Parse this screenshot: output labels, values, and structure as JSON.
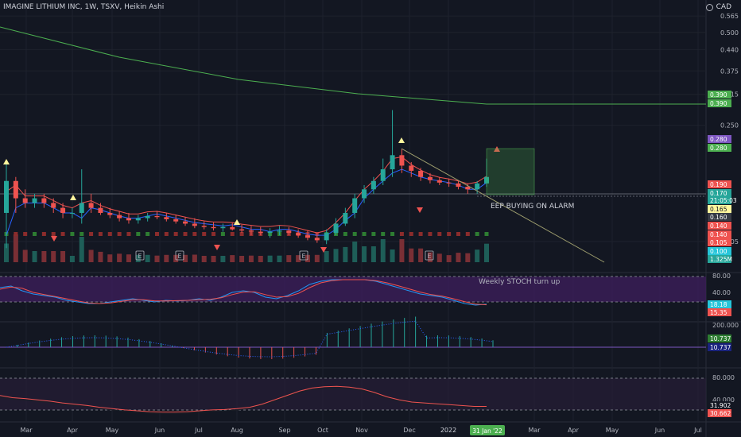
{
  "header": {
    "title": "IMAGINE LITHIUM INC, 1W, TSXV, Heikin Ashi",
    "currency": "CAD"
  },
  "annotations": {
    "alarm_text": "EEP BUYING ON ALARM",
    "stoch_text": "Weekly STOCH turn up"
  },
  "colors": {
    "bg": "#131722",
    "up": "#26a69a",
    "down": "#ef5350",
    "grid": "#1e222d",
    "axis_text": "#b2b5be",
    "ma_green": "#4caf50",
    "stoch_fill": "#3c1e5a"
  },
  "price_axis": {
    "ticks": [
      "0.565",
      "0.500",
      "0.440",
      "0.375",
      "0.315",
      "0.250",
      "0.105"
    ]
  },
  "price_labels": [
    {
      "text": "0.390",
      "bg": "#4caf50"
    },
    {
      "text": "0.390",
      "bg": "#4caf50"
    },
    {
      "text": "0.280",
      "bg": "#7e57c2"
    },
    {
      "text": "0.280",
      "bg": "#4caf50"
    },
    {
      "text": "0.190",
      "bg": "#ef5350"
    },
    {
      "text": "0.170",
      "bg": "#26a69a"
    },
    {
      "text": "21:05:03",
      "bg": "#26a69a"
    },
    {
      "text": "0.165",
      "bg": "#fff59d"
    },
    {
      "text": "0.160",
      "bg": "#363a45"
    },
    {
      "text": "0.140",
      "bg": "#ef5350"
    },
    {
      "text": "0.140",
      "bg": "#ef5350"
    },
    {
      "text": "0.105",
      "bg": "#ef5350"
    },
    {
      "text": "0.100",
      "bg": "#26c6da"
    },
    {
      "text": "1.325M",
      "bg": "#26a69a"
    }
  ],
  "stoch_axis": {
    "ticks": [
      "80.00",
      "40.00"
    ],
    "labels": [
      {
        "text": "18.18",
        "bg": "#26c6da"
      },
      {
        "text": "15.35",
        "bg": "#ef5350"
      }
    ]
  },
  "macd_axis": {
    "ticks": [
      "200.000"
    ],
    "labels": [
      {
        "text": "10.737",
        "bg": "#2e7d32"
      },
      {
        "text": "10.737",
        "bg": "#1a237e"
      }
    ]
  },
  "rsi_axis": {
    "ticks": [
      "80.000",
      "40.000"
    ],
    "labels": [
      {
        "text": "31.902",
        "bg": "#131722"
      },
      {
        "text": "30.662",
        "bg": "#ef5350"
      }
    ]
  },
  "time_axis": {
    "labels": [
      "Mar",
      "Apr",
      "May",
      "Jun",
      "Jul",
      "Aug",
      "Sep",
      "Oct",
      "Nov",
      "Dec",
      "2022",
      "Mar",
      "Apr",
      "May",
      "Jun",
      "Jul"
    ],
    "current": "31 Jan '22"
  },
  "earnings_marker": "E",
  "chart_data": {
    "type": "candlestick",
    "title": "IMAGINE LITHIUM INC, 1W, TSXV, Heikin Ashi",
    "ylim": [
      0.09,
      0.6
    ],
    "series": [
      {
        "candles": [
          {
            "o": 0.13,
            "h": 0.19,
            "l": 0.1,
            "c": 0.165
          },
          {
            "o": 0.165,
            "h": 0.17,
            "l": 0.13,
            "c": 0.145
          },
          {
            "o": 0.145,
            "h": 0.155,
            "l": 0.135,
            "c": 0.14
          },
          {
            "o": 0.14,
            "h": 0.15,
            "l": 0.135,
            "c": 0.145
          },
          {
            "o": 0.145,
            "h": 0.15,
            "l": 0.135,
            "c": 0.14
          },
          {
            "o": 0.14,
            "h": 0.145,
            "l": 0.13,
            "c": 0.135
          },
          {
            "o": 0.135,
            "h": 0.14,
            "l": 0.125,
            "c": 0.13
          },
          {
            "o": 0.13,
            "h": 0.135,
            "l": 0.125,
            "c": 0.13
          },
          {
            "o": 0.13,
            "h": 0.18,
            "l": 0.12,
            "c": 0.14
          },
          {
            "o": 0.14,
            "h": 0.15,
            "l": 0.13,
            "c": 0.135
          },
          {
            "o": 0.135,
            "h": 0.14,
            "l": 0.128,
            "c": 0.13
          },
          {
            "o": 0.13,
            "h": 0.135,
            "l": 0.125,
            "c": 0.128
          },
          {
            "o": 0.128,
            "h": 0.132,
            "l": 0.122,
            "c": 0.125
          },
          {
            "o": 0.125,
            "h": 0.13,
            "l": 0.12,
            "c": 0.123
          },
          {
            "o": 0.123,
            "h": 0.128,
            "l": 0.12,
            "c": 0.125
          },
          {
            "o": 0.125,
            "h": 0.13,
            "l": 0.122,
            "c": 0.127
          },
          {
            "o": 0.127,
            "h": 0.132,
            "l": 0.124,
            "c": 0.126
          },
          {
            "o": 0.126,
            "h": 0.13,
            "l": 0.122,
            "c": 0.124
          },
          {
            "o": 0.124,
            "h": 0.128,
            "l": 0.12,
            "c": 0.122
          },
          {
            "o": 0.122,
            "h": 0.126,
            "l": 0.118,
            "c": 0.12
          },
          {
            "o": 0.12,
            "h": 0.125,
            "l": 0.116,
            "c": 0.118
          },
          {
            "o": 0.118,
            "h": 0.122,
            "l": 0.115,
            "c": 0.117
          },
          {
            "o": 0.117,
            "h": 0.121,
            "l": 0.114,
            "c": 0.116
          },
          {
            "o": 0.116,
            "h": 0.12,
            "l": 0.113,
            "c": 0.117
          },
          {
            "o": 0.117,
            "h": 0.121,
            "l": 0.114,
            "c": 0.115
          },
          {
            "o": 0.115,
            "h": 0.119,
            "l": 0.112,
            "c": 0.114
          },
          {
            "o": 0.114,
            "h": 0.118,
            "l": 0.11,
            "c": 0.113
          },
          {
            "o": 0.113,
            "h": 0.117,
            "l": 0.11,
            "c": 0.112
          },
          {
            "o": 0.112,
            "h": 0.116,
            "l": 0.108,
            "c": 0.113
          },
          {
            "o": 0.113,
            "h": 0.118,
            "l": 0.11,
            "c": 0.114
          },
          {
            "o": 0.114,
            "h": 0.117,
            "l": 0.11,
            "c": 0.112
          },
          {
            "o": 0.112,
            "h": 0.115,
            "l": 0.108,
            "c": 0.11
          },
          {
            "o": 0.11,
            "h": 0.114,
            "l": 0.106,
            "c": 0.108
          },
          {
            "o": 0.108,
            "h": 0.112,
            "l": 0.104,
            "c": 0.106
          },
          {
            "o": 0.106,
            "h": 0.115,
            "l": 0.103,
            "c": 0.112
          },
          {
            "o": 0.112,
            "h": 0.125,
            "l": 0.11,
            "c": 0.12
          },
          {
            "o": 0.12,
            "h": 0.135,
            "l": 0.118,
            "c": 0.13
          },
          {
            "o": 0.13,
            "h": 0.15,
            "l": 0.125,
            "c": 0.145
          },
          {
            "o": 0.145,
            "h": 0.16,
            "l": 0.14,
            "c": 0.155
          },
          {
            "o": 0.155,
            "h": 0.17,
            "l": 0.15,
            "c": 0.165
          },
          {
            "o": 0.165,
            "h": 0.195,
            "l": 0.16,
            "c": 0.18
          },
          {
            "o": 0.18,
            "h": 0.28,
            "l": 0.17,
            "c": 0.2
          },
          {
            "o": 0.2,
            "h": 0.21,
            "l": 0.175,
            "c": 0.185
          },
          {
            "o": 0.185,
            "h": 0.19,
            "l": 0.17,
            "c": 0.178
          },
          {
            "o": 0.178,
            "h": 0.182,
            "l": 0.165,
            "c": 0.17
          },
          {
            "o": 0.17,
            "h": 0.175,
            "l": 0.162,
            "c": 0.166
          },
          {
            "o": 0.166,
            "h": 0.17,
            "l": 0.16,
            "c": 0.163
          },
          {
            "o": 0.163,
            "h": 0.168,
            "l": 0.158,
            "c": 0.162
          },
          {
            "o": 0.162,
            "h": 0.166,
            "l": 0.155,
            "c": 0.158
          },
          {
            "o": 0.158,
            "h": 0.162,
            "l": 0.15,
            "c": 0.155
          },
          {
            "o": 0.155,
            "h": 0.165,
            "l": 0.15,
            "c": 0.162
          },
          {
            "o": 0.162,
            "h": 0.195,
            "l": 0.158,
            "c": 0.17
          }
        ]
      }
    ]
  }
}
